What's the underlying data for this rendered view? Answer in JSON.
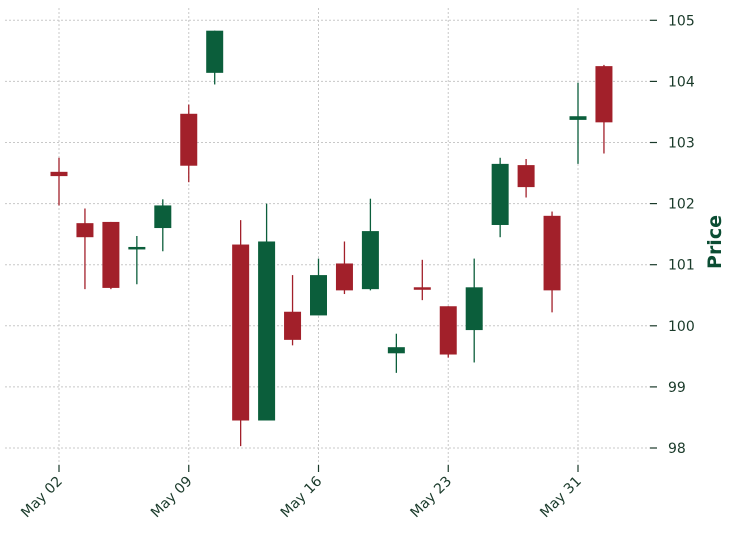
{
  "chart_data": {
    "type": "candlestick",
    "ylabel": "Price",
    "ylim": [
      97.8,
      105.2
    ],
    "y_ticks": [
      98,
      99,
      100,
      101,
      102,
      103,
      104,
      105
    ],
    "x_ticks": [
      {
        "label": "May 02",
        "index": 0
      },
      {
        "label": "May 09",
        "index": 5
      },
      {
        "label": "May 16",
        "index": 10
      },
      {
        "label": "May 23",
        "index": 15
      },
      {
        "label": "May 31",
        "index": 20
      }
    ],
    "grid": true,
    "y_axis_side": "right",
    "colors": {
      "up": "#0b5e3b",
      "down": "#a2202a",
      "text": "#1a3a2a",
      "ylabel": "#0b4d33"
    },
    "candles": [
      {
        "open": 102.52,
        "high": 102.75,
        "low": 101.97,
        "close": 102.45
      },
      {
        "open": 101.68,
        "high": 101.92,
        "low": 100.6,
        "close": 101.45
      },
      {
        "open": 101.7,
        "high": 101.7,
        "low": 100.6,
        "close": 100.62
      },
      {
        "open": 101.27,
        "high": 101.47,
        "low": 100.68,
        "close": 101.27
      },
      {
        "open": 101.6,
        "high": 102.07,
        "low": 101.22,
        "close": 101.97
      },
      {
        "open": 103.47,
        "high": 103.62,
        "low": 102.35,
        "close": 102.62
      },
      {
        "open": 104.14,
        "high": 104.83,
        "low": 103.95,
        "close": 104.83
      },
      {
        "open": 101.33,
        "high": 101.73,
        "low": 98.03,
        "close": 98.45
      },
      {
        "open": 98.45,
        "high": 102.0,
        "low": 98.45,
        "close": 101.38
      },
      {
        "open": 100.23,
        "high": 100.83,
        "low": 99.68,
        "close": 99.77
      },
      {
        "open": 100.17,
        "high": 101.1,
        "low": 100.17,
        "close": 100.83
      },
      {
        "open": 101.02,
        "high": 101.38,
        "low": 100.52,
        "close": 100.58
      },
      {
        "open": 100.6,
        "high": 102.08,
        "low": 100.58,
        "close": 101.55
      },
      {
        "open": 99.55,
        "high": 99.87,
        "low": 99.23,
        "close": 99.65
      },
      {
        "open": 100.62,
        "high": 101.08,
        "low": 100.42,
        "close": 100.6
      },
      {
        "open": 100.32,
        "high": 100.32,
        "low": 99.48,
        "close": 99.53
      },
      {
        "open": 99.93,
        "high": 101.1,
        "low": 99.4,
        "close": 100.63
      },
      {
        "open": 101.65,
        "high": 102.75,
        "low": 101.45,
        "close": 102.65
      },
      {
        "open": 102.63,
        "high": 102.73,
        "low": 102.1,
        "close": 102.27
      },
      {
        "open": 101.8,
        "high": 101.87,
        "low": 100.22,
        "close": 100.58
      },
      {
        "open": 103.37,
        "high": 103.98,
        "low": 102.65,
        "close": 103.43
      },
      {
        "open": 104.25,
        "high": 104.27,
        "low": 102.82,
        "close": 103.33
      }
    ]
  }
}
